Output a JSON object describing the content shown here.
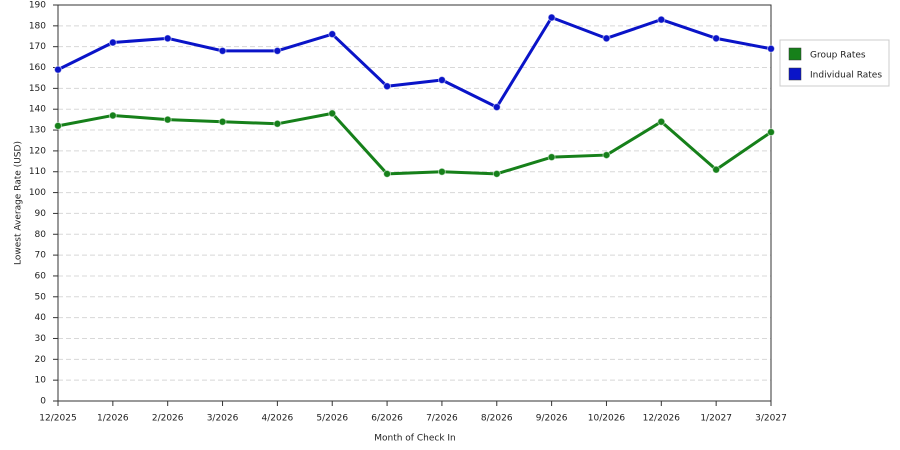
{
  "chart_data": {
    "type": "line",
    "x_label": "Month of Check In",
    "y_label": "Lowest Average Rate (USD)",
    "categories": [
      "12/2025",
      "1/2026",
      "2/2026",
      "3/2026",
      "4/2026",
      "5/2026",
      "6/2026",
      "7/2026",
      "8/2026",
      "9/2026",
      "10/2026",
      "12/2026",
      "1/2027",
      "3/2027"
    ],
    "series": [
      {
        "name": "Group Rates",
        "color": "#16801a",
        "values": [
          132,
          137,
          135,
          134,
          133,
          138,
          109,
          110,
          109,
          117,
          118,
          134,
          111,
          129
        ]
      },
      {
        "name": "Individual Rates",
        "color": "#0a14c8",
        "values": [
          159,
          172,
          174,
          168,
          168,
          176,
          151,
          154,
          141,
          184,
          174,
          183,
          174,
          169
        ]
      }
    ],
    "ylim": [
      0,
      190
    ],
    "yticks": [
      0,
      10,
      20,
      30,
      40,
      50,
      60,
      70,
      80,
      90,
      100,
      110,
      120,
      130,
      140,
      150,
      160,
      170,
      180,
      190
    ],
    "grid": true,
    "legend": "right"
  }
}
